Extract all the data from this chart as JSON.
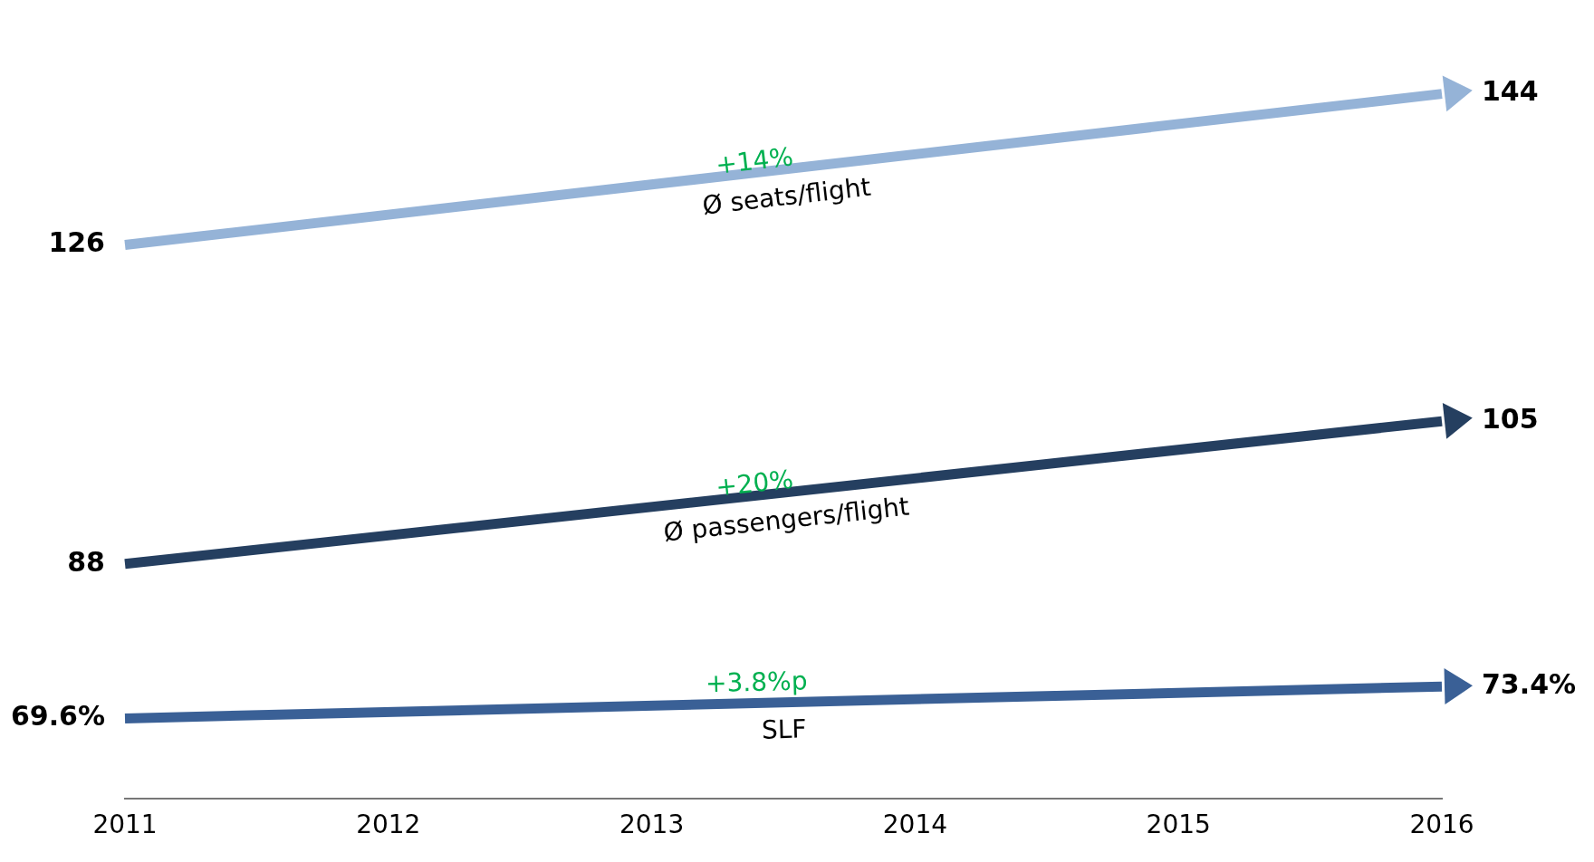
{
  "chart_data": {
    "type": "line",
    "categories": [
      "2011",
      "2012",
      "2013",
      "2014",
      "2015",
      "2016"
    ],
    "series": [
      {
        "name": "Ø seats/flight",
        "color": "#95b3d7",
        "values": [
          126,
          null,
          null,
          null,
          null,
          144
        ],
        "value_labels": [
          "126",
          null,
          null,
          null,
          null,
          "144"
        ]
      },
      {
        "name": "Ø passengers/flight",
        "color": "#253f60",
        "values": [
          88,
          null,
          null,
          null,
          null,
          105
        ],
        "value_labels": [
          "88",
          null,
          null,
          null,
          null,
          "105"
        ]
      },
      {
        "name": "SLF",
        "color": "#3a6096",
        "values": [
          69.6,
          null,
          null,
          null,
          null,
          73.4
        ],
        "value_labels": [
          "69.6%",
          null,
          null,
          null,
          null,
          "73.4%"
        ]
      }
    ],
    "annotations": [
      {
        "text": "+14%",
        "x": "2013",
        "y": 133.2
      },
      {
        "text": "+20%",
        "x": "2013",
        "y": 94.8
      },
      {
        "text": "+3.8%p",
        "x": "2013",
        "y": 71.1
      }
    ],
    "grid": false,
    "legend": false,
    "tick_labels": "x"
  }
}
